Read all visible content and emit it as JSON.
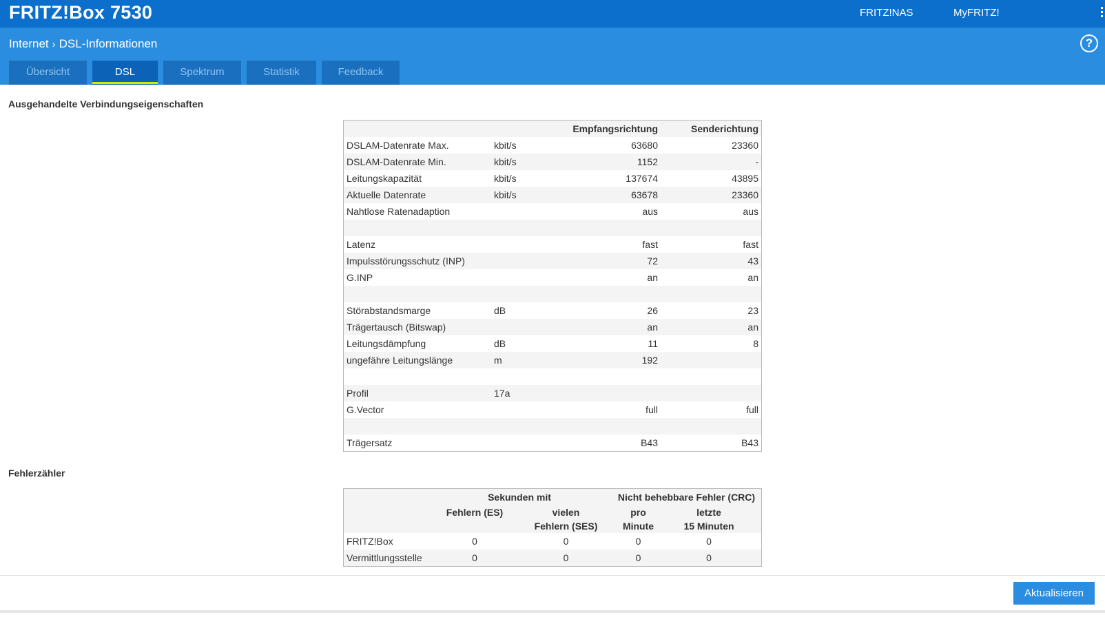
{
  "header": {
    "brand": "FRITZ!Box 7530",
    "links": [
      "FRITZ!NAS",
      "MyFRITZ!"
    ]
  },
  "breadcrumb": {
    "parent": "Internet",
    "current": "DSL-Informationen"
  },
  "tabs": [
    {
      "label": "Übersicht",
      "active": false
    },
    {
      "label": "DSL",
      "active": true
    },
    {
      "label": "Spektrum",
      "active": false
    },
    {
      "label": "Statistik",
      "active": false
    },
    {
      "label": "Feedback",
      "active": false
    }
  ],
  "connection": {
    "title": "Ausgehandelte Verbindungseigenschaften",
    "headers": {
      "recv": "Empfangsrichtung",
      "send": "Senderichtung"
    },
    "rows": [
      {
        "label": "DSLAM-Datenrate Max.",
        "unit": "kbit/s",
        "recv": "63680",
        "send": "23360"
      },
      {
        "label": "DSLAM-Datenrate Min.",
        "unit": "kbit/s",
        "recv": "1152",
        "send": "-"
      },
      {
        "label": "Leitungskapazität",
        "unit": "kbit/s",
        "recv": "137674",
        "send": "43895"
      },
      {
        "label": "Aktuelle Datenrate",
        "unit": "kbit/s",
        "recv": "63678",
        "send": "23360"
      },
      {
        "label": "Nahtlose Ratenadaption",
        "unit": "",
        "recv": "aus",
        "send": "aus"
      },
      {
        "label": "",
        "unit": "",
        "recv": "",
        "send": ""
      },
      {
        "label": "Latenz",
        "unit": "",
        "recv": "fast",
        "send": "fast"
      },
      {
        "label": "Impulsstörungsschutz (INP)",
        "unit": "",
        "recv": "72",
        "send": "43"
      },
      {
        "label": "G.INP",
        "unit": "",
        "recv": "an",
        "send": "an"
      },
      {
        "label": "",
        "unit": "",
        "recv": "",
        "send": ""
      },
      {
        "label": "Störabstandsmarge",
        "unit": "dB",
        "recv": "26",
        "send": "23"
      },
      {
        "label": "Trägertausch (Bitswap)",
        "unit": "",
        "recv": "an",
        "send": "an"
      },
      {
        "label": "Leitungsdämpfung",
        "unit": "dB",
        "recv": "11",
        "send": "8"
      },
      {
        "label": "ungefähre Leitungslänge",
        "unit": "m",
        "recv": "192",
        "send": ""
      },
      {
        "label": "",
        "unit": "",
        "recv": "",
        "send": ""
      },
      {
        "label": "Profil",
        "unit": "17a",
        "recv": "",
        "send": ""
      },
      {
        "label": "G.Vector",
        "unit": "",
        "recv": "full",
        "send": "full"
      },
      {
        "label": "",
        "unit": "",
        "recv": "",
        "send": ""
      },
      {
        "label": "Trägersatz",
        "unit": "",
        "recv": "B43",
        "send": "B43"
      }
    ]
  },
  "errors": {
    "title": "Fehlerzähler",
    "group1": "Sekunden mit",
    "group2": "Nicht behebbare Fehler (CRC)",
    "col1": "Fehlern (ES)",
    "col2a": "vielen",
    "col2b": "Fehlern (SES)",
    "col3a": "pro",
    "col3b": "Minute",
    "col4a": "letzte",
    "col4b": "15 Minuten",
    "rows": [
      {
        "label": "FRITZ!Box",
        "es": "0",
        "ses": "0",
        "min": "0",
        "m15": "0"
      },
      {
        "label": "Vermittlungsstelle",
        "es": "0",
        "ses": "0",
        "min": "0",
        "m15": "0"
      }
    ]
  },
  "footer": {
    "refresh_label": "Aktualisieren"
  }
}
